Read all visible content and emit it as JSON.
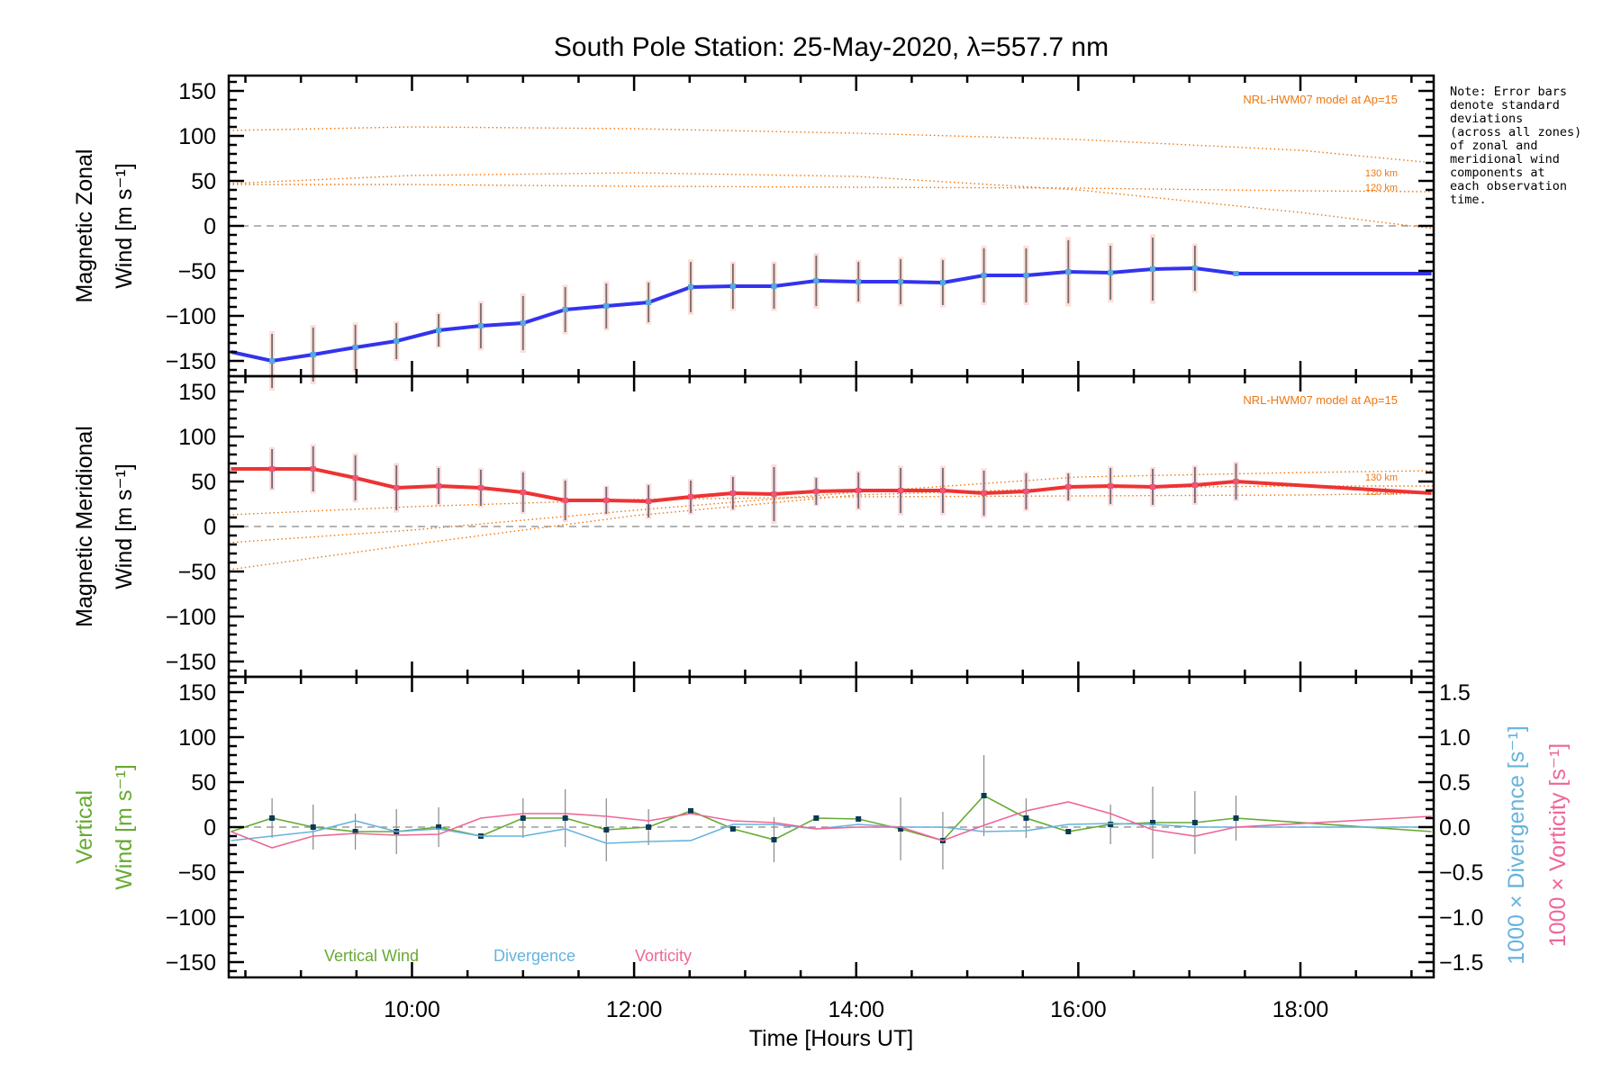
{
  "chart_data": {
    "type": "line",
    "title": "South Pole Station: 25-May-2020, λ=557.7 nm",
    "xlabel": "Time [Hours UT]",
    "xlim": [
      8.35,
      19.2
    ],
    "x_ticks": [
      10,
      12,
      14,
      16,
      18
    ],
    "x_tick_labels": [
      "10:00",
      "12:00",
      "14:00",
      "16:00",
      "18:00"
    ],
    "note": "Note: Error bars\ndenote standard\ndeviations\n(across all zones)\nof zonal and\nmeridional wind\ncomponents at\neach observation\ntime.",
    "times": [
      8.37,
      8.74,
      9.11,
      9.49,
      9.86,
      10.24,
      10.62,
      11.0,
      11.38,
      11.75,
      12.13,
      12.51,
      12.89,
      13.26,
      13.64,
      14.02,
      14.4,
      14.78,
      15.15,
      15.53,
      15.91,
      16.29,
      16.67,
      17.05,
      17.42,
      19.18
    ],
    "panels": [
      {
        "name": "zonal",
        "ylabel_line1": "Magnetic Zonal",
        "ylabel_line2": "Wind [m s⁻¹]",
        "ylim": [
          -167,
          167
        ],
        "y_ticks": [
          -150,
          -100,
          -50,
          0,
          50,
          100,
          150
        ],
        "model_label": "NRL-HWM07 model at Ap=15",
        "km_labels": [
          "130 km",
          "120 km"
        ],
        "series": [
          {
            "name": "Zonal wind",
            "color": "#3333ee",
            "values": [
              -140,
              -150,
              -143,
              -135,
              -128,
              -116,
              -111,
              -108,
              -93,
              -89,
              -85,
              -68,
              -67,
              -67,
              -61,
              -62,
              -62,
              -63,
              -55,
              -55,
              -51,
              -52,
              -48,
              -47,
              -53,
              -53
            ],
            "errors": [
              0,
              30,
              30,
              25,
              20,
              18,
              25,
              30,
              25,
              25,
              22,
              28,
              25,
              25,
              28,
              22,
              25,
              25,
              30,
              30,
              35,
              30,
              35,
              25,
              0,
              0
            ]
          }
        ],
        "model_curves": [
          {
            "name": "model-high",
            "x": [
              8.35,
              10,
              12,
              14,
              16,
              18,
              19.2
            ],
            "values": [
              106,
              110,
              108,
              103,
              96,
              84,
              70
            ]
          },
          {
            "name": "model-130km",
            "x": [
              8.35,
              10,
              12,
              14,
              16,
              18,
              19.2
            ],
            "values": [
              47,
              56,
              59,
              55,
              40,
              15,
              -3
            ]
          },
          {
            "name": "model-120km",
            "x": [
              8.35,
              10,
              12,
              14,
              16,
              18,
              19.2
            ],
            "values": [
              46,
              46,
              44,
              43,
              42,
              39,
              38
            ]
          }
        ]
      },
      {
        "name": "meridional",
        "ylabel_line1": "Magnetic Meridional",
        "ylabel_line2": "Wind [m s⁻¹]",
        "ylim": [
          -167,
          167
        ],
        "y_ticks": [
          -150,
          -100,
          -50,
          0,
          50,
          100,
          150
        ],
        "model_label": "NRL-HWM07 model at Ap=15",
        "km_labels": [
          "130 km",
          "120 km"
        ],
        "series": [
          {
            "name": "Meridional wind",
            "color": "#ee3333",
            "values": [
              64,
              64,
              64,
              54,
              43,
              45,
              43,
              38,
              29,
              29,
              28,
              33,
              37,
              36,
              39,
              40,
              40,
              40,
              37,
              39,
              44,
              45,
              44,
              46,
              50,
              37
            ],
            "errors": [
              0,
              22,
              25,
              25,
              25,
              20,
              20,
              22,
              22,
              15,
              18,
              18,
              18,
              30,
              15,
              20,
              25,
              25,
              25,
              20,
              15,
              20,
              20,
              20,
              20,
              0
            ]
          }
        ],
        "model_curves": [
          {
            "name": "model-a",
            "x": [
              8.35,
              10,
              12,
              14,
              16,
              18,
              19.2
            ],
            "values": [
              13,
              22,
              30,
              33,
              34,
              35,
              37
            ]
          },
          {
            "name": "model-130km",
            "x": [
              8.35,
              10,
              12,
              14,
              16,
              18,
              19.2
            ],
            "values": [
              -18,
              -4,
              18,
              38,
              55,
              60,
              62
            ]
          },
          {
            "name": "model-120km",
            "x": [
              8.35,
              10,
              12,
              14,
              16,
              18,
              19.2
            ],
            "values": [
              -48,
              -20,
              12,
              35,
              43,
              45,
              45
            ]
          }
        ]
      },
      {
        "name": "vertical",
        "ylabel_line1": "Vertical",
        "ylabel_line2": "Wind [m s⁻¹]",
        "ylim": [
          -167,
          167
        ],
        "y_ticks": [
          -150,
          -100,
          -50,
          0,
          50,
          100,
          150
        ],
        "right_axis": {
          "ylim": [
            -1.67,
            1.67
          ],
          "y_ticks": [
            -1.5,
            -1.0,
            -0.5,
            0.0,
            0.5,
            1.0,
            1.5
          ],
          "y_tick_labels": [
            "−1.5",
            "−1.0",
            "−0.5",
            "0.0",
            "0.5",
            "1.0",
            "1.5"
          ],
          "label_divergence": "1000 × Divergence [s⁻¹]",
          "label_vorticity": "1000 × Vorticity [s⁻¹]"
        },
        "legend": [
          "Vertical Wind",
          "Divergence",
          "Vorticity"
        ],
        "series": [
          {
            "name": "Vertical Wind",
            "color": "#66aa33",
            "axis": "left",
            "values": [
              -5,
              10,
              0,
              -5,
              -5,
              0,
              -10,
              10,
              10,
              -3,
              0,
              18,
              -2,
              -14,
              10,
              9,
              -2,
              -15,
              35,
              10,
              -5,
              3,
              5,
              5,
              10,
              -5
            ],
            "errors": [
              0,
              22,
              25,
              20,
              25,
              22,
              0,
              22,
              32,
              35,
              20,
              0,
              0,
              25,
              0,
              0,
              35,
              32,
              45,
              22,
              0,
              22,
              40,
              35,
              25,
              0
            ]
          },
          {
            "name": "Divergence",
            "color": "#66b3dd",
            "axis": "right",
            "values": [
              -0.15,
              -0.1,
              -0.05,
              0.07,
              -0.05,
              -0.02,
              -0.1,
              -0.1,
              -0.02,
              -0.18,
              -0.16,
              -0.15,
              0.03,
              0.03,
              -0.02,
              0.03,
              0.0,
              0.0,
              -0.05,
              -0.04,
              0.03,
              0.04,
              0.03,
              0.0,
              0.0,
              0.0
            ]
          },
          {
            "name": "Vorticity",
            "color": "#ee6699",
            "axis": "right",
            "values": [
              -0.05,
              -0.23,
              -0.1,
              -0.07,
              -0.09,
              -0.08,
              0.1,
              0.15,
              0.15,
              0.12,
              0.07,
              0.15,
              0.07,
              0.05,
              -0.02,
              0.0,
              0.0,
              -0.15,
              0.02,
              0.18,
              0.28,
              0.15,
              -0.03,
              -0.1,
              0.0,
              0.12
            ]
          }
        ]
      }
    ]
  }
}
